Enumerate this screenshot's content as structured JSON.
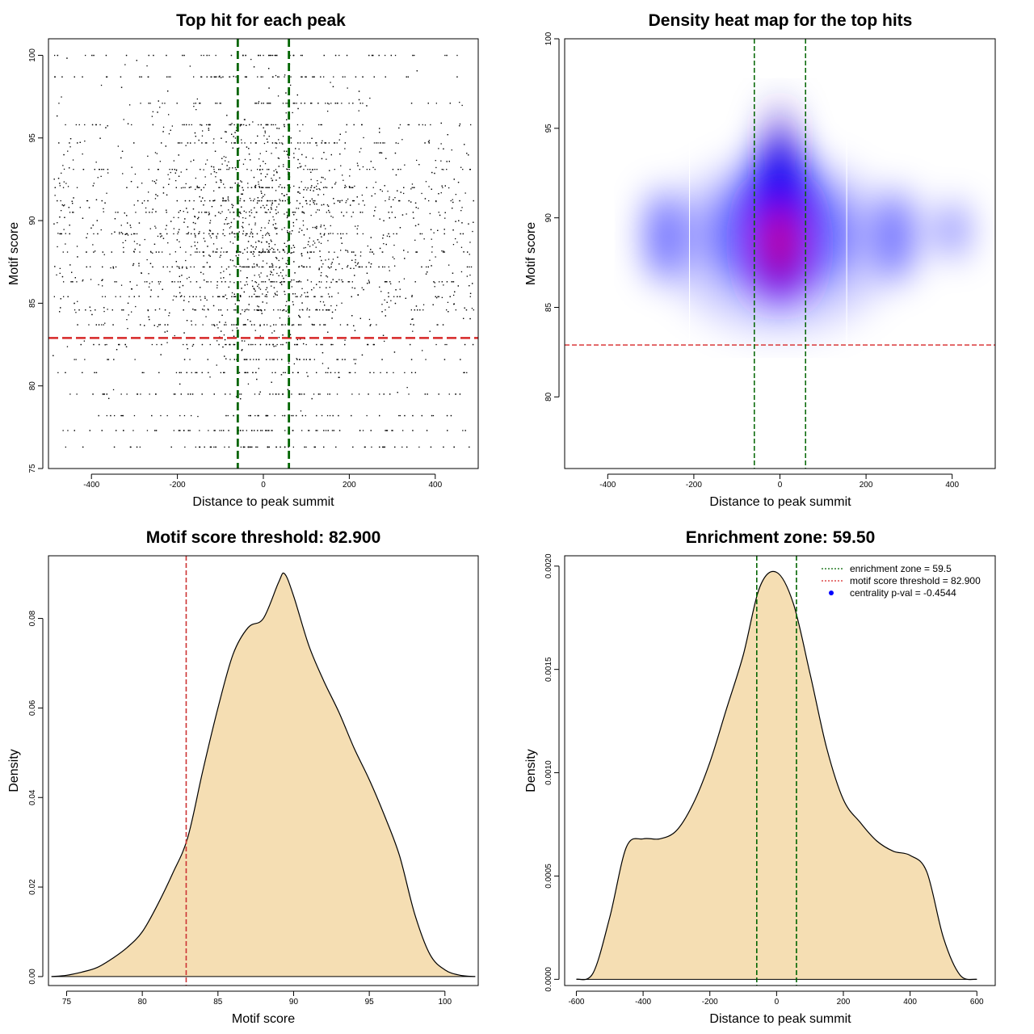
{
  "chart_data": [
    {
      "type": "scatter",
      "title": "Top hit for each peak",
      "xlabel": "Distance to peak summit",
      "ylabel": "Motif score",
      "xlim": [
        -500,
        500
      ],
      "ylim": [
        75,
        101
      ],
      "xticks": [
        "-400",
        "-200",
        "0",
        "200",
        "400"
      ],
      "yticks": [
        "75",
        "80",
        "85",
        "90",
        "95",
        "100"
      ],
      "point_color": "#000000",
      "hline": 82.9,
      "hline_color": "#d62728",
      "vlines": [
        -59.5,
        59.5
      ],
      "vline_color": "#006400",
      "grid": false
    },
    {
      "type": "heatmap",
      "title": "Density heat map for the top hits",
      "xlabel": "Distance to peak summit",
      "ylabel": "Motif score",
      "xlim": [
        -500,
        500
      ],
      "ylim": [
        76,
        100
      ],
      "xticks": [
        "-400",
        "-200",
        "0",
        "200",
        "400"
      ],
      "yticks": [
        "80",
        "85",
        "90",
        "95",
        "100"
      ],
      "colors": [
        "#ffffff",
        "#0000ff",
        "#ff0000"
      ],
      "hline": 82.9,
      "hline_color": "#d62728",
      "vlines": [
        -59.5,
        59.5
      ],
      "vline_color": "#006400",
      "white_vlines": [
        -210,
        155
      ],
      "grid": false
    },
    {
      "type": "area",
      "title": "Motif score threshold: 82.900",
      "xlabel": "Motif score",
      "ylabel": "Density",
      "xlim": [
        73.8,
        102.2
      ],
      "ylim": [
        -0.002,
        0.094
      ],
      "xticks": [
        "75",
        "80",
        "85",
        "90",
        "95",
        "100"
      ],
      "yticks": [
        "0.00",
        "0.02",
        "0.04",
        "0.06",
        "0.08"
      ],
      "fill_color": "#f5deb3",
      "x": [
        74,
        75,
        76,
        77,
        78,
        79,
        80,
        81,
        82,
        83,
        84,
        85,
        86,
        87,
        88,
        89,
        89.4,
        90,
        91,
        92,
        93,
        94,
        95,
        96,
        97,
        98,
        99,
        100,
        101,
        102
      ],
      "y": [
        0,
        0.0003,
        0.001,
        0.002,
        0.004,
        0.0065,
        0.01,
        0.016,
        0.023,
        0.031,
        0.046,
        0.06,
        0.072,
        0.078,
        0.08,
        0.088,
        0.09,
        0.085,
        0.074,
        0.066,
        0.059,
        0.051,
        0.044,
        0.036,
        0.027,
        0.014,
        0.005,
        0.0015,
        0.0003,
        0
      ],
      "vline": 82.9,
      "vline_color": "#cc3333",
      "grid": false
    },
    {
      "type": "area",
      "title": "Enrichment zone: 59.50",
      "xlabel": "Distance to peak summit",
      "ylabel": "Density",
      "xlim": [
        -635,
        655
      ],
      "ylim": [
        -3e-05,
        0.00205
      ],
      "xticks": [
        "-600",
        "-400",
        "-200",
        "0",
        "200",
        "400",
        "600"
      ],
      "yticks": [
        "0.0000",
        "0.0005",
        "0.0010",
        "0.0015",
        "0.0020"
      ],
      "fill_color": "#f5deb3",
      "x": [
        -600,
        -550,
        -500,
        -450,
        -400,
        -350,
        -300,
        -250,
        -200,
        -150,
        -100,
        -50,
        0,
        50,
        100,
        150,
        200,
        250,
        300,
        350,
        400,
        450,
        500,
        550,
        600
      ],
      "y": [
        0,
        3e-05,
        0.0003,
        0.00064,
        0.00068,
        0.00068,
        0.00072,
        0.00085,
        0.00105,
        0.00131,
        0.00157,
        0.0019,
        0.00197,
        0.00182,
        0.00148,
        0.00112,
        0.00087,
        0.00076,
        0.00067,
        0.00062,
        0.0006,
        0.00052,
        0.0002,
        2e-05,
        0
      ],
      "vlines": [
        -59.5,
        59.5
      ],
      "vline_color": "#006400",
      "legend_position": "top-right",
      "legend": [
        {
          "label": "enrichment zone = 59.5",
          "color": "#006400",
          "style": "dotted-line"
        },
        {
          "label": "motif score threshold = 82.900",
          "color": "#d62728",
          "style": "dotted-line"
        },
        {
          "label": "centrality p-val = -0.4544",
          "color": "#0000ff",
          "style": "point"
        }
      ],
      "grid": false
    }
  ]
}
